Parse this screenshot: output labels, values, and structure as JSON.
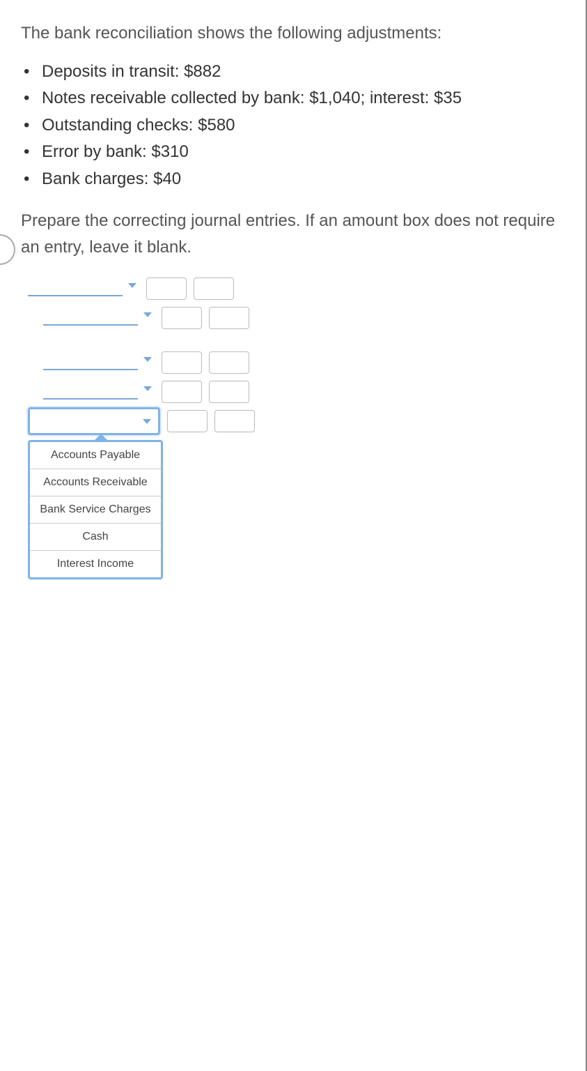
{
  "intro": "The bank reconciliation shows the following adjustments:",
  "bullets": [
    "Deposits in transit: $882",
    "Notes receivable collected by bank: $1,040; interest: $35",
    "Outstanding checks: $580",
    "Error by bank: $310",
    "Bank charges: $40"
  ],
  "instruction": "Prepare the correcting journal entries. If an amount box does not require an entry, leave it blank.",
  "dropdown": {
    "options": [
      "Accounts Payable",
      "Accounts Receivable",
      "Bank Service Charges",
      "Cash",
      "Interest Income"
    ]
  },
  "colors": {
    "line": "#7aa7d9",
    "selection": "#7fb3e8",
    "text_muted": "#555555",
    "text": "#333333",
    "border": "#bbbbbb"
  }
}
